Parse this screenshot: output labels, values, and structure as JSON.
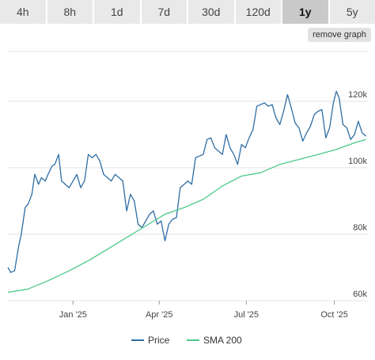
{
  "timeframes": {
    "tabs": [
      "4h",
      "8h",
      "1d",
      "7d",
      "30d",
      "120d",
      "1y",
      "5y"
    ],
    "active": "1y"
  },
  "remove_graph_label": "remove graph",
  "colors": {
    "price": "#2e6da4",
    "sma": "#4cc98a",
    "grid": "#e3e3e3"
  },
  "chart_data": {
    "type": "line",
    "x_ticks": [
      "Jan '25",
      "Apr '25",
      "Jul '25",
      "Oct '25"
    ],
    "y_ticks": [
      {
        "value": 60000,
        "label": "60k"
      },
      {
        "value": 80000,
        "label": "80k"
      },
      {
        "value": 100000,
        "label": "100k"
      },
      {
        "value": 120000,
        "label": "120k"
      }
    ],
    "ylim": [
      60000,
      135000
    ],
    "xlim": [
      "2024-10-25",
      "2025-11-05"
    ],
    "grid": true,
    "legend_position": "bottom-center",
    "series": [
      {
        "name": "Price",
        "x": [
          "2024-10-25",
          "2024-10-28",
          "2024-11-01",
          "2024-11-05",
          "2024-11-08",
          "2024-11-12",
          "2024-11-15",
          "2024-11-19",
          "2024-11-22",
          "2024-11-26",
          "2024-11-29",
          "2024-12-03",
          "2024-12-06",
          "2024-12-10",
          "2024-12-13",
          "2024-12-17",
          "2024-12-20",
          "2024-12-24",
          "2024-12-28",
          "2025-01-01",
          "2025-01-05",
          "2025-01-09",
          "2025-01-13",
          "2025-01-17",
          "2025-01-21",
          "2025-01-25",
          "2025-01-29",
          "2025-02-02",
          "2025-02-06",
          "2025-02-10",
          "2025-02-14",
          "2025-02-18",
          "2025-02-22",
          "2025-02-26",
          "2025-03-02",
          "2025-03-06",
          "2025-03-10",
          "2025-03-14",
          "2025-03-18",
          "2025-03-22",
          "2025-03-26",
          "2025-03-30",
          "2025-04-03",
          "2025-04-07",
          "2025-04-11",
          "2025-04-15",
          "2025-04-19",
          "2025-04-23",
          "2025-04-27",
          "2025-05-01",
          "2025-05-05",
          "2025-05-09",
          "2025-05-13",
          "2025-05-17",
          "2025-05-21",
          "2025-05-25",
          "2025-05-29",
          "2025-06-02",
          "2025-06-06",
          "2025-06-10",
          "2025-06-14",
          "2025-06-18",
          "2025-06-22",
          "2025-06-26",
          "2025-06-30",
          "2025-07-04",
          "2025-07-08",
          "2025-07-12",
          "2025-07-16",
          "2025-07-20",
          "2025-07-24",
          "2025-07-28",
          "2025-08-01",
          "2025-08-05",
          "2025-08-09",
          "2025-08-13",
          "2025-08-17",
          "2025-08-21",
          "2025-08-25",
          "2025-08-29",
          "2025-09-02",
          "2025-09-06",
          "2025-09-10",
          "2025-09-14",
          "2025-09-18",
          "2025-09-22",
          "2025-09-26",
          "2025-09-30",
          "2025-10-03",
          "2025-10-06",
          "2025-10-10",
          "2025-10-14",
          "2025-10-18",
          "2025-10-22",
          "2025-10-26",
          "2025-10-30",
          "2025-11-03"
        ],
        "values": [
          70000,
          68500,
          69000,
          76000,
          80000,
          88000,
          89000,
          92000,
          98000,
          95000,
          97000,
          96000,
          98000,
          100500,
          101000,
          104000,
          96000,
          95000,
          94000,
          96000,
          98000,
          94000,
          96000,
          104000,
          103000,
          104000,
          102000,
          98000,
          97000,
          96000,
          98000,
          97000,
          96000,
          87000,
          92000,
          90000,
          83000,
          82000,
          84000,
          86000,
          87000,
          83000,
          84000,
          78000,
          83000,
          84500,
          85000,
          94000,
          95000,
          96000,
          95000,
          103000,
          103500,
          104000,
          108500,
          109000,
          106000,
          105000,
          104000,
          110000,
          106000,
          104000,
          101000,
          107000,
          106000,
          109000,
          111500,
          118500,
          119000,
          119500,
          118500,
          119000,
          115000,
          113000,
          117000,
          122000,
          118000,
          113500,
          112000,
          108000,
          110500,
          112500,
          116000,
          117000,
          117500,
          109000,
          112000,
          119500,
          123000,
          121000,
          113000,
          112000,
          108500,
          110000,
          114000,
          110500,
          109500
        ]
      },
      {
        "name": "SMA 200",
        "x": [
          "2024-10-25",
          "2024-11-15",
          "2024-12-06",
          "2024-12-28",
          "2025-01-17",
          "2025-02-06",
          "2025-02-26",
          "2025-03-18",
          "2025-04-07",
          "2025-04-27",
          "2025-05-17",
          "2025-06-06",
          "2025-06-26",
          "2025-07-16",
          "2025-08-05",
          "2025-08-25",
          "2025-09-14",
          "2025-10-03",
          "2025-10-22",
          "2025-11-03"
        ],
        "values": [
          62500,
          63500,
          66000,
          69000,
          72000,
          75500,
          79000,
          82500,
          86000,
          88000,
          90500,
          94500,
          97500,
          98500,
          101000,
          102500,
          104000,
          105500,
          107500,
          108500
        ]
      }
    ]
  }
}
